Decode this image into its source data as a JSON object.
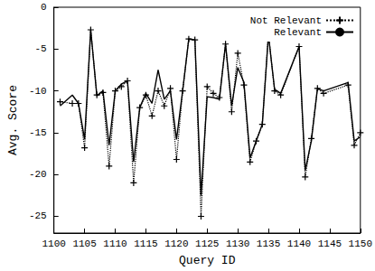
{
  "chart_data": {
    "type": "line",
    "x_label": "Query ID",
    "y_label": "Avg. Score",
    "x": [
      1101,
      1103,
      1104,
      1105,
      1106,
      1107,
      1108,
      1109,
      1110,
      1111,
      1112,
      1113,
      1114,
      1115,
      1116,
      1117,
      1118,
      1119,
      1120,
      1121,
      1122,
      1123,
      1124,
      1125,
      1126,
      1127,
      1128,
      1129,
      1130,
      1131,
      1132,
      1133,
      1134,
      1135,
      1136,
      1137,
      1140,
      1141,
      1142,
      1143,
      1144,
      1148,
      1149,
      1150
    ],
    "series": [
      {
        "name": "Not Relevant",
        "color": "#000000",
        "line_style": "dotted",
        "marker": "plus",
        "values": [
          -11.3,
          -11.5,
          -11.5,
          -16.8,
          -2.7,
          -10.5,
          -10.2,
          -19.0,
          -10.0,
          -9.5,
          -8.8,
          -21.0,
          -12.0,
          -10.5,
          -13.0,
          -10.0,
          -11.8,
          -9.7,
          -18.2,
          -10.0,
          -3.8,
          -3.9,
          -25.0,
          -9.5,
          -10.3,
          -10.8,
          -4.4,
          -12.5,
          -5.5,
          -9.3,
          -18.5,
          -16.0,
          -14.0,
          -3.2,
          -10.0,
          -10.5,
          -4.7,
          -20.3,
          -15.7,
          -9.7,
          -10.3,
          -9.3,
          -16.5,
          -15.0
        ]
      },
      {
        "name": "Relevant",
        "color": "#000000",
        "line_style": "solid",
        "marker": "none",
        "values": [
          -11.8,
          -10.5,
          -11.5,
          -15.8,
          -2.7,
          -10.6,
          -10.0,
          -16.5,
          -10.0,
          -9.2,
          -8.8,
          -18.5,
          -12.0,
          -10.3,
          -11.5,
          -7.5,
          -11.0,
          -10.0,
          -15.8,
          -10.0,
          -3.8,
          -3.9,
          -22.5,
          -10.7,
          -10.8,
          -11.0,
          -4.4,
          -11.8,
          -7.2,
          -9.0,
          -18.0,
          -16.0,
          -14.0,
          -3.3,
          -9.8,
          -10.3,
          -4.7,
          -19.5,
          -16.0,
          -9.7,
          -10.0,
          -9.0,
          -16.0,
          -15.5
        ]
      }
    ],
    "xlim": [
      1100,
      1150
    ],
    "xticks": [
      1100,
      1105,
      1110,
      1115,
      1120,
      1125,
      1130,
      1135,
      1140,
      1145,
      1150
    ],
    "ylim": [
      -27,
      0
    ],
    "yticks": [
      -25,
      -20,
      -15,
      -10,
      -5,
      0
    ],
    "grid": false,
    "legend": "upper right"
  }
}
